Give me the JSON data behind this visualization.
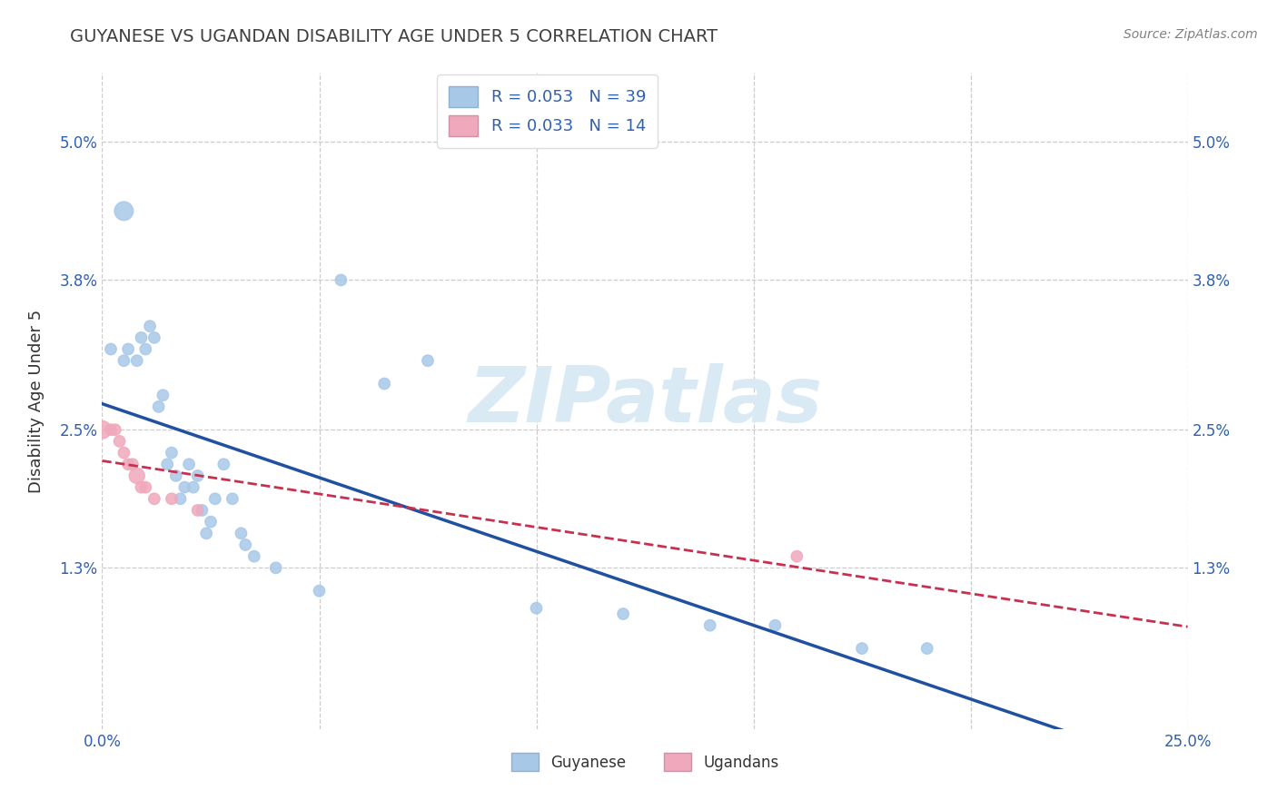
{
  "title": "GUYANESE VS UGANDAN DISABILITY AGE UNDER 5 CORRELATION CHART",
  "source": "Source: ZipAtlas.com",
  "ylabel": "Disability Age Under 5",
  "xlim": [
    0.0,
    0.25
  ],
  "ylim": [
    -0.001,
    0.056
  ],
  "xtick_vals": [
    0.0,
    0.05,
    0.1,
    0.15,
    0.2,
    0.25
  ],
  "xtick_labels": [
    "0.0%",
    "",
    "",
    "",
    "",
    "25.0%"
  ],
  "ytick_vals": [
    0.013,
    0.025,
    0.038,
    0.05
  ],
  "ytick_labels": [
    "1.3%",
    "2.5%",
    "3.8%",
    "5.0%"
  ],
  "hgrid_vals": [
    0.013,
    0.025,
    0.038,
    0.05
  ],
  "vgrid_vals": [
    0.0,
    0.05,
    0.1,
    0.15,
    0.2,
    0.25
  ],
  "legend_r1": "R = 0.053   N = 39",
  "legend_r2": "R = 0.033   N = 14",
  "guyanese_color": "#a8c8e8",
  "ugandan_color": "#f0a8bc",
  "guyanese_line_color": "#2050a0",
  "ugandan_line_color": "#c83050",
  "watermark_text": "ZIPatlas",
  "watermark_color": "#daeaf5",
  "title_color": "#404040",
  "source_color": "#808080",
  "tick_color": "#3060b0",
  "ylabel_color": "#333333",
  "grid_color": "#cccccc",
  "guyanese_x": [
    0.002,
    0.005,
    0.006,
    0.008,
    0.009,
    0.01,
    0.011,
    0.012,
    0.013,
    0.014,
    0.015,
    0.016,
    0.017,
    0.018,
    0.019,
    0.02,
    0.021,
    0.022,
    0.023,
    0.024,
    0.025,
    0.026,
    0.028,
    0.03,
    0.032,
    0.033,
    0.035,
    0.04,
    0.05,
    0.055,
    0.065,
    0.075,
    0.1,
    0.12,
    0.14,
    0.155,
    0.175,
    0.19,
    0.005
  ],
  "guyanese_y": [
    0.032,
    0.031,
    0.032,
    0.031,
    0.033,
    0.032,
    0.034,
    0.033,
    0.027,
    0.028,
    0.022,
    0.023,
    0.021,
    0.019,
    0.02,
    0.022,
    0.02,
    0.021,
    0.018,
    0.016,
    0.017,
    0.019,
    0.022,
    0.019,
    0.016,
    0.015,
    0.014,
    0.013,
    0.011,
    0.038,
    0.029,
    0.031,
    0.0095,
    0.009,
    0.008,
    0.008,
    0.006,
    0.006,
    0.044
  ],
  "guyanese_size": [
    80,
    80,
    80,
    80,
    80,
    80,
    80,
    80,
    80,
    80,
    80,
    80,
    80,
    80,
    80,
    80,
    80,
    80,
    80,
    80,
    80,
    80,
    80,
    80,
    80,
    80,
    80,
    80,
    80,
    80,
    80,
    80,
    80,
    80,
    80,
    80,
    80,
    80,
    220
  ],
  "ugandan_x": [
    0.0,
    0.002,
    0.003,
    0.004,
    0.005,
    0.006,
    0.007,
    0.008,
    0.009,
    0.01,
    0.012,
    0.016,
    0.022,
    0.16
  ],
  "ugandan_y": [
    0.025,
    0.025,
    0.025,
    0.024,
    0.023,
    0.022,
    0.022,
    0.021,
    0.02,
    0.02,
    0.019,
    0.019,
    0.018,
    0.014
  ],
  "ugandan_size": [
    200,
    80,
    80,
    80,
    80,
    80,
    80,
    150,
    80,
    80,
    80,
    80,
    80,
    80
  ]
}
